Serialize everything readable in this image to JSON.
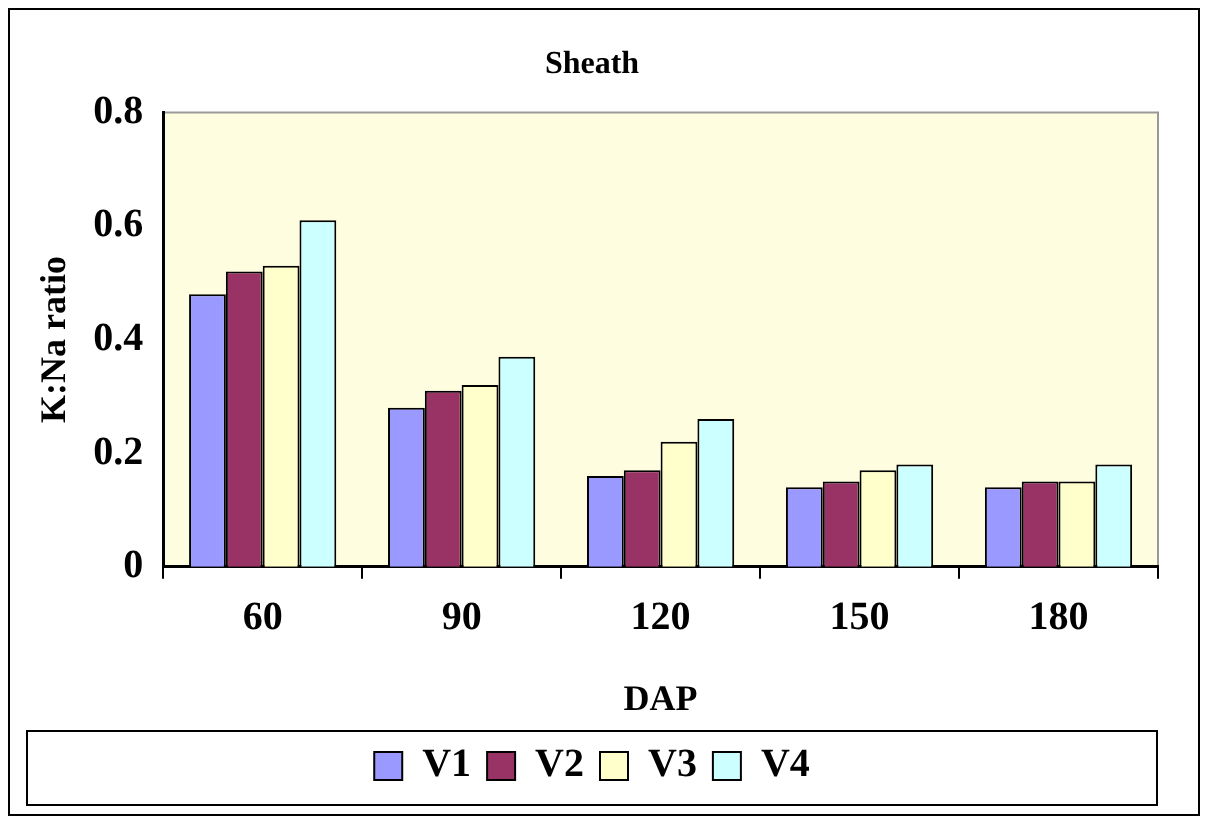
{
  "chart_data": {
    "type": "bar",
    "title": "Sheath",
    "xlabel": "DAP",
    "ylabel": "K:Na ratio",
    "categories": [
      "60",
      "90",
      "120",
      "150",
      "180"
    ],
    "series": [
      {
        "name": "V1",
        "color": "#9999ff",
        "values": [
          0.48,
          0.28,
          0.16,
          0.14,
          0.14
        ]
      },
      {
        "name": "V2",
        "color": "#993366",
        "values": [
          0.52,
          0.31,
          0.17,
          0.15,
          0.15
        ]
      },
      {
        "name": "V3",
        "color": "#ffffcc",
        "values": [
          0.53,
          0.32,
          0.22,
          0.17,
          0.15
        ]
      },
      {
        "name": "V4",
        "color": "#ccffff",
        "values": [
          0.61,
          0.37,
          0.26,
          0.18,
          0.18
        ]
      }
    ],
    "ylim": [
      0,
      0.8
    ],
    "yticks": [
      0,
      0.2,
      0.4,
      0.6,
      0.8
    ],
    "grid": false,
    "legend": "bottom"
  }
}
